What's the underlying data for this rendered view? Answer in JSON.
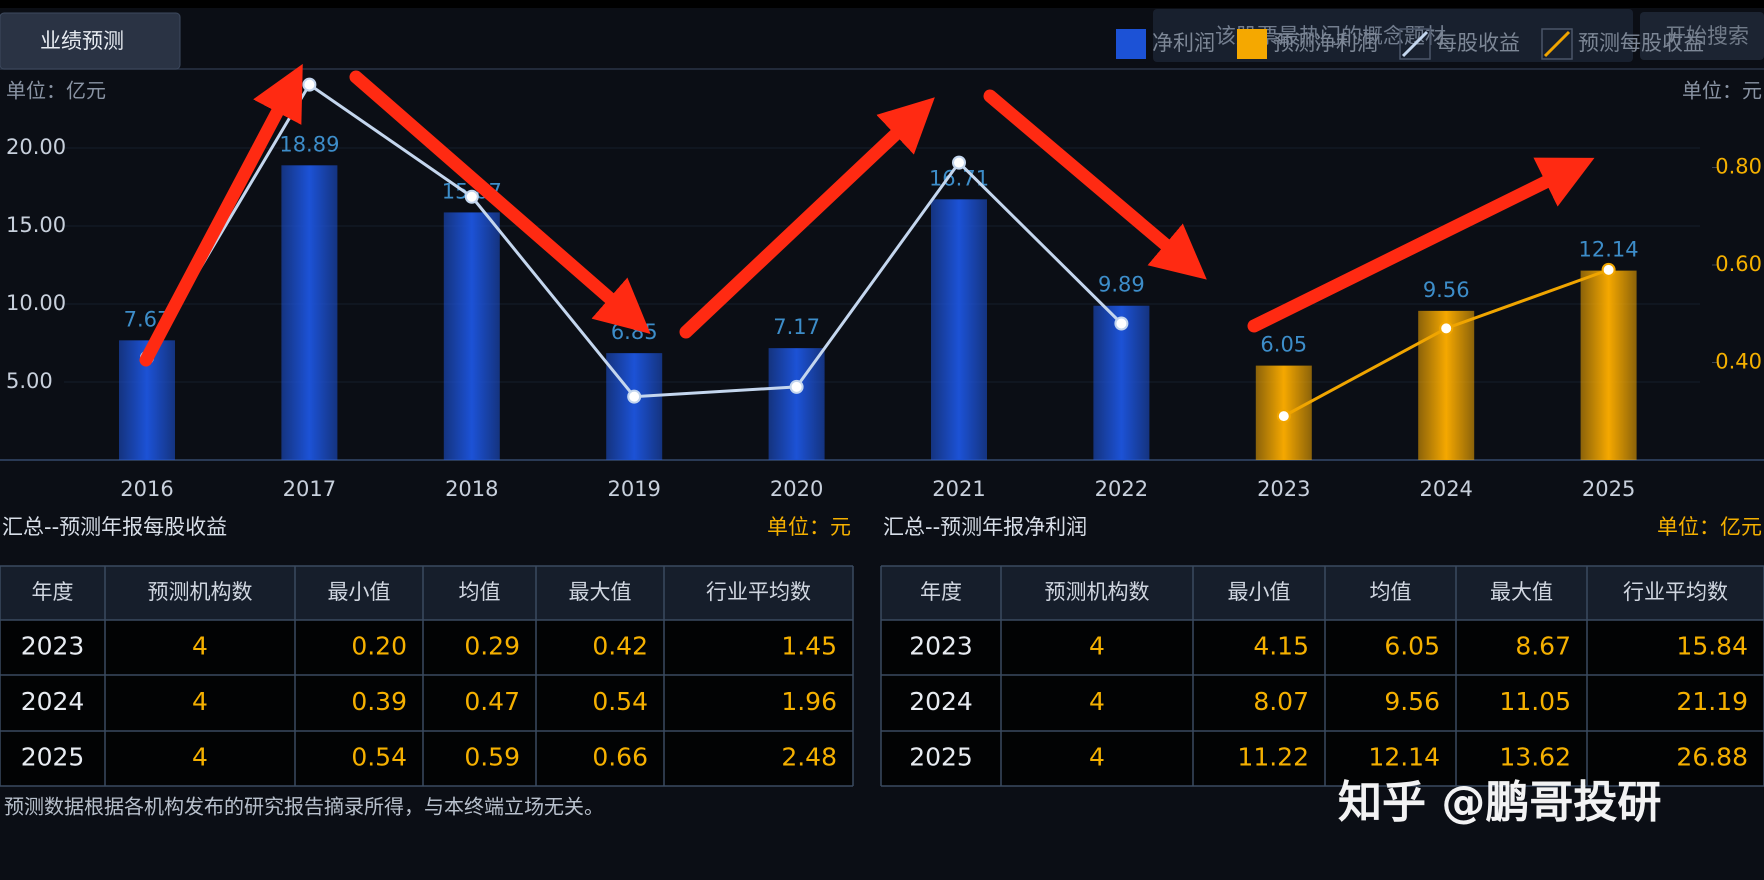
{
  "tab": "业绩预测",
  "search": {
    "placeholder": "该股票最热门的概念题材",
    "button": "开始搜索"
  },
  "chart_data": {
    "type": "bar",
    "unit_left": "单位：亿元",
    "unit_right": "单位：元",
    "categories": [
      "2016",
      "2017",
      "2018",
      "2019",
      "2020",
      "2021",
      "2022",
      "2023",
      "2024",
      "2025"
    ],
    "ylim": [
      0,
      25
    ],
    "yticks": [
      {
        "value": 5,
        "label": "5.00"
      },
      {
        "value": 10,
        "label": "10.00"
      },
      {
        "value": 15,
        "label": "15.00"
      },
      {
        "value": 20,
        "label": "20.00"
      }
    ],
    "y2lim": [
      0.2,
      1.0
    ],
    "y2ticks": [
      {
        "value": 0.4,
        "label": "0.40"
      },
      {
        "value": 0.6,
        "label": "0.60"
      },
      {
        "value": 0.8,
        "label": "0.80"
      }
    ],
    "grid": true,
    "legend": "top-right",
    "series": [
      {
        "name": "净利润",
        "type": "bar",
        "color": "#1c52d6",
        "values": [
          7.67,
          18.89,
          15.87,
          6.85,
          7.17,
          16.71,
          9.89,
          null,
          null,
          null
        ]
      },
      {
        "name": "预测净利润",
        "type": "bar",
        "color": "#f5a800",
        "values": [
          null,
          null,
          null,
          null,
          null,
          null,
          null,
          6.05,
          9.56,
          12.14
        ]
      },
      {
        "name": "每股收益",
        "type": "line",
        "axis": "y2",
        "color": "#c4d6ee",
        "values": [
          0.41,
          0.97,
          0.74,
          0.33,
          0.35,
          0.81,
          0.48,
          null,
          null,
          null
        ]
      },
      {
        "name": "预测每股收益",
        "type": "line",
        "axis": "y2",
        "color": "#f0a500",
        "values": [
          null,
          null,
          null,
          null,
          null,
          null,
          null,
          0.29,
          0.47,
          0.59
        ]
      }
    ]
  },
  "tables": [
    {
      "title": "汇总--预测年报每股收益",
      "unit": "单位：元",
      "headers": [
        "年度",
        "预测机构数",
        "最小值",
        "均值",
        "最大值",
        "行业平均数"
      ],
      "rows": [
        [
          "2023",
          "4",
          "0.20",
          "0.29",
          "0.42",
          "1.45"
        ],
        [
          "2024",
          "4",
          "0.39",
          "0.47",
          "0.54",
          "1.96"
        ],
        [
          "2025",
          "4",
          "0.54",
          "0.59",
          "0.66",
          "2.48"
        ]
      ]
    },
    {
      "title": "汇总--预测年报净利润",
      "unit": "单位：亿元",
      "headers": [
        "年度",
        "预测机构数",
        "最小值",
        "均值",
        "最大值",
        "行业平均数"
      ],
      "rows": [
        [
          "2023",
          "4",
          "4.15",
          "6.05",
          "8.67",
          "15.84"
        ],
        [
          "2024",
          "4",
          "8.07",
          "9.56",
          "11.05",
          "21.19"
        ],
        [
          "2025",
          "4",
          "11.22",
          "12.14",
          "13.62",
          "26.88"
        ]
      ]
    }
  ],
  "footer": "预测数据根据各机构发布的研究报告摘录所得，与本终端立场无关。",
  "watermark": "知乎 @鹏哥投研"
}
